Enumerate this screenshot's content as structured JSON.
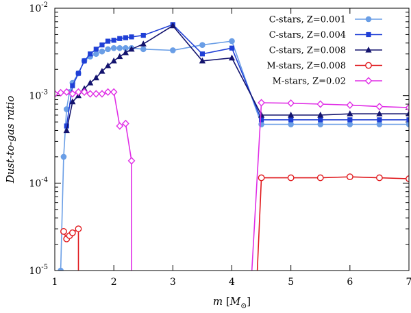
{
  "chart_data": {
    "type": "line",
    "title": "",
    "xlabel": "m [M_⊙]",
    "xlabel_parts": {
      "var": "m",
      "open": " [",
      "sym": "M",
      "sub": "⊙",
      "close": "]"
    },
    "ylabel": "Dust-to-gas ratio",
    "xlim": [
      1,
      7
    ],
    "ylim": [
      1e-05,
      0.01
    ],
    "yscale": "log",
    "legend_position": "top-right",
    "x_ticks": [
      1,
      2,
      3,
      4,
      5,
      6,
      7
    ],
    "x_tick_labels": [
      "1",
      "2",
      "3",
      "4",
      "5",
      "6",
      "7"
    ],
    "y_ticks": [
      {
        "value": 1e-05,
        "base": "10",
        "exp": "-5"
      },
      {
        "value": 0.0001,
        "base": "10",
        "exp": "-4"
      },
      {
        "value": 0.001,
        "base": "10",
        "exp": "-3"
      },
      {
        "value": 0.01,
        "base": "10",
        "exp": "-2"
      }
    ],
    "series": [
      {
        "name": "C-stars, Z=0.001",
        "color": "#6a9ee6",
        "marker": "circle",
        "x": [
          1.1,
          1.15,
          1.2,
          1.25,
          1.3,
          1.4,
          1.5,
          1.6,
          1.7,
          1.8,
          1.9,
          2.0,
          2.1,
          2.2,
          2.3,
          2.5,
          3.0,
          3.5,
          4.0
        ],
        "y": [
          1e-05,
          0.0002,
          0.0007,
          0.0011,
          0.0014,
          0.0018,
          0.0025,
          0.0028,
          0.003,
          0.0032,
          0.0034,
          0.0035,
          0.0035,
          0.0035,
          0.0035,
          0.0034,
          0.0033,
          0.0038,
          0.0042
        ],
        "x_tail": [
          4.5,
          5.0,
          5.5,
          6.0,
          6.5,
          7.0
        ],
        "y_tail": [
          0.00047,
          0.00047,
          0.00047,
          0.00047,
          0.00047,
          0.00047
        ]
      },
      {
        "name": "C-stars, Z=0.004",
        "color": "#1f3fd6",
        "marker": "square",
        "x": [
          1.2,
          1.3,
          1.4,
          1.5,
          1.6,
          1.7,
          1.8,
          1.9,
          2.0,
          2.1,
          2.2,
          2.3,
          2.5,
          3.0,
          3.5,
          4.0
        ],
        "y": [
          0.00045,
          0.0013,
          0.0018,
          0.0025,
          0.003,
          0.0034,
          0.0038,
          0.0042,
          0.0043,
          0.0045,
          0.0046,
          0.0047,
          0.0049,
          0.0065,
          0.003,
          0.0035
        ],
        "x_tail": [
          4.5,
          5.0,
          5.5,
          6.0,
          6.5,
          7.0
        ],
        "y_tail": [
          0.00053,
          0.00053,
          0.00053,
          0.00053,
          0.00053,
          0.00053
        ]
      },
      {
        "name": "C-stars, Z=0.008",
        "color": "#13136e",
        "marker": "triangle",
        "x": [
          1.2,
          1.3,
          1.4,
          1.5,
          1.6,
          1.7,
          1.8,
          1.9,
          2.0,
          2.1,
          2.2,
          2.3,
          2.5,
          3.0,
          3.5,
          4.0
        ],
        "y": [
          0.0004,
          0.00085,
          0.001,
          0.0012,
          0.0014,
          0.0016,
          0.0019,
          0.0022,
          0.0025,
          0.0028,
          0.0031,
          0.0034,
          0.0039,
          0.0063,
          0.0025,
          0.0027
        ],
        "x_tail": [
          4.5,
          5.0,
          5.5,
          6.0,
          6.5,
          7.0
        ],
        "y_tail": [
          0.0006,
          0.0006,
          0.0006,
          0.00062,
          0.00062,
          0.00062
        ]
      },
      {
        "name": "M-stars, Z=0.008",
        "color": "#e0181c",
        "marker": "open-circle",
        "x": [
          1.15,
          1.2,
          1.25,
          1.3,
          1.4
        ],
        "y": [
          2.8e-05,
          2.3e-05,
          2.5e-05,
          2.7e-05,
          3e-05
        ],
        "x_tail": [
          4.5,
          5.0,
          5.5,
          6.0,
          6.5,
          7.0
        ],
        "y_tail": [
          0.000115,
          0.000115,
          0.000115,
          0.000118,
          0.000115,
          0.000112
        ]
      },
      {
        "name": "M-stars, Z=0.02",
        "color": "#e02ee6",
        "marker": "open-diamond",
        "x": [
          1.0,
          1.1,
          1.2,
          1.3,
          1.4,
          1.5,
          1.6,
          1.7,
          1.8,
          1.9,
          2.0,
          2.1,
          2.2,
          2.3
        ],
        "y": [
          0.00105,
          0.00108,
          0.0011,
          0.00105,
          0.0011,
          0.0011,
          0.00105,
          0.00105,
          0.00105,
          0.0011,
          0.0011,
          0.00045,
          0.00048,
          0.00018
        ],
        "x_tail": [
          4.5,
          5.0,
          5.5,
          6.0,
          6.5,
          7.0
        ],
        "y_tail": [
          0.00083,
          0.00082,
          0.0008,
          0.00078,
          0.00075,
          0.00073
        ]
      }
    ]
  }
}
